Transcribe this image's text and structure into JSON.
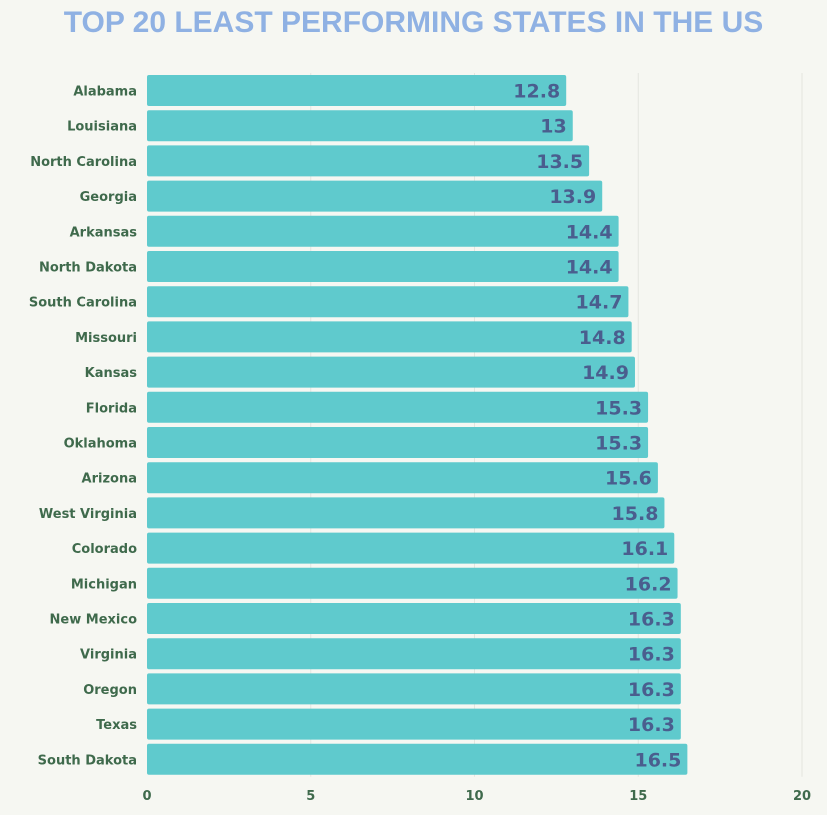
{
  "chart_data": {
    "type": "bar",
    "orientation": "horizontal",
    "title": "TOP 20 LEAST PERFORMING STATES IN THE US",
    "xlabel": "",
    "ylabel": "",
    "categories": [
      "Alabama",
      "Louisiana",
      "North Carolina",
      "Georgia",
      "Arkansas",
      "North Dakota",
      "South Carolina",
      "Missouri",
      "Kansas",
      "Florida",
      "Oklahoma",
      "Arizona",
      "West Virginia",
      "Colorado",
      "Michigan",
      "New Mexico",
      "Virginia",
      "Oregon",
      "Texas",
      "South Dakota"
    ],
    "values": [
      12.8,
      13,
      13.5,
      13.9,
      14.4,
      14.4,
      14.7,
      14.8,
      14.9,
      15.3,
      15.3,
      15.6,
      15.8,
      16.1,
      16.2,
      16.3,
      16.3,
      16.3,
      16.3,
      16.5
    ],
    "xlim": [
      0,
      20
    ],
    "xticks": [
      0,
      5,
      10,
      15,
      20
    ],
    "grid": true,
    "colors": {
      "bar": "#5fcacd",
      "value_label": "#4a5e8e",
      "category_label": "#3f6a4c",
      "title": "#8fb1e3",
      "background": "#f6f7f2"
    }
  }
}
